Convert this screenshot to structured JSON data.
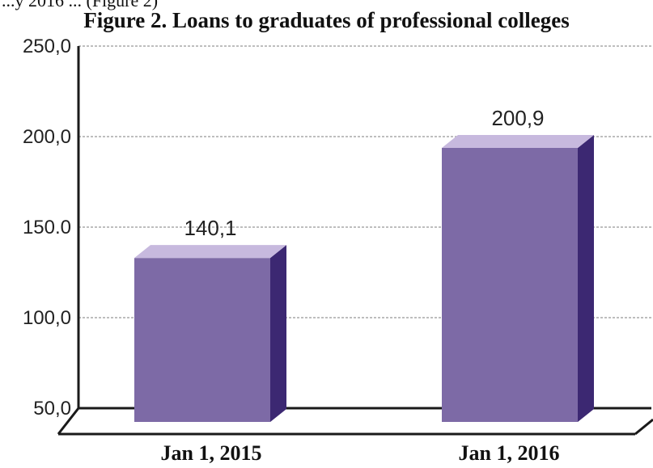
{
  "page": {
    "cropped_text": "...y 2016 ... (Figure 2)",
    "title": "Figure 2. Loans to graduates of professional colleges"
  },
  "chart_data": {
    "type": "bar",
    "title": "Figure 2. Loans to graduates of professional colleges",
    "categories": [
      "Jan 1, 2015",
      "Jan 1, 2016"
    ],
    "values": [
      140.1,
      200.9
    ],
    "value_labels": [
      "140,1",
      "200,9"
    ],
    "yticks": [
      50,
      100,
      150,
      200,
      250
    ],
    "ytick_labels": [
      "50,0",
      "100,0",
      "150.0",
      "200,0",
      "250,0"
    ],
    "ylim": [
      50,
      250
    ],
    "xlabel": "",
    "ylabel": "",
    "grid": true,
    "legend": "none",
    "colors": {
      "bar_front": "#7d6aa6",
      "bar_top": "#c7b9de",
      "bar_side": "#3c2872",
      "grid": "#a8a8a8",
      "axis": "#1a1a1a"
    }
  }
}
